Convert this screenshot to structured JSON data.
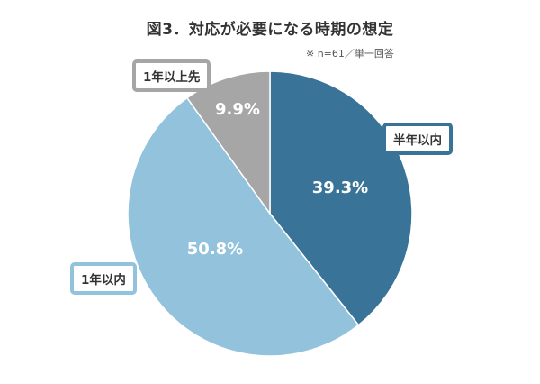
{
  "title": "図3．対応が必要になる時期の想定",
  "note": "※ n=61／単一回答",
  "chart_data": {
    "type": "pie",
    "slices": [
      {
        "label": "半年以内",
        "value": 39.3,
        "display": "39.3%",
        "color": "#3a7398",
        "border": "#3a7398"
      },
      {
        "label": "1年以内",
        "value": 50.8,
        "display": "50.8%",
        "color": "#92c2dc",
        "border": "#92c2dc"
      },
      {
        "label": "1年以上先",
        "value": 9.9,
        "display": "9.9%",
        "color": "#a6a6a6",
        "border": "#a6a6a6"
      }
    ],
    "start": "12 o'clock",
    "direction": "clockwise"
  }
}
